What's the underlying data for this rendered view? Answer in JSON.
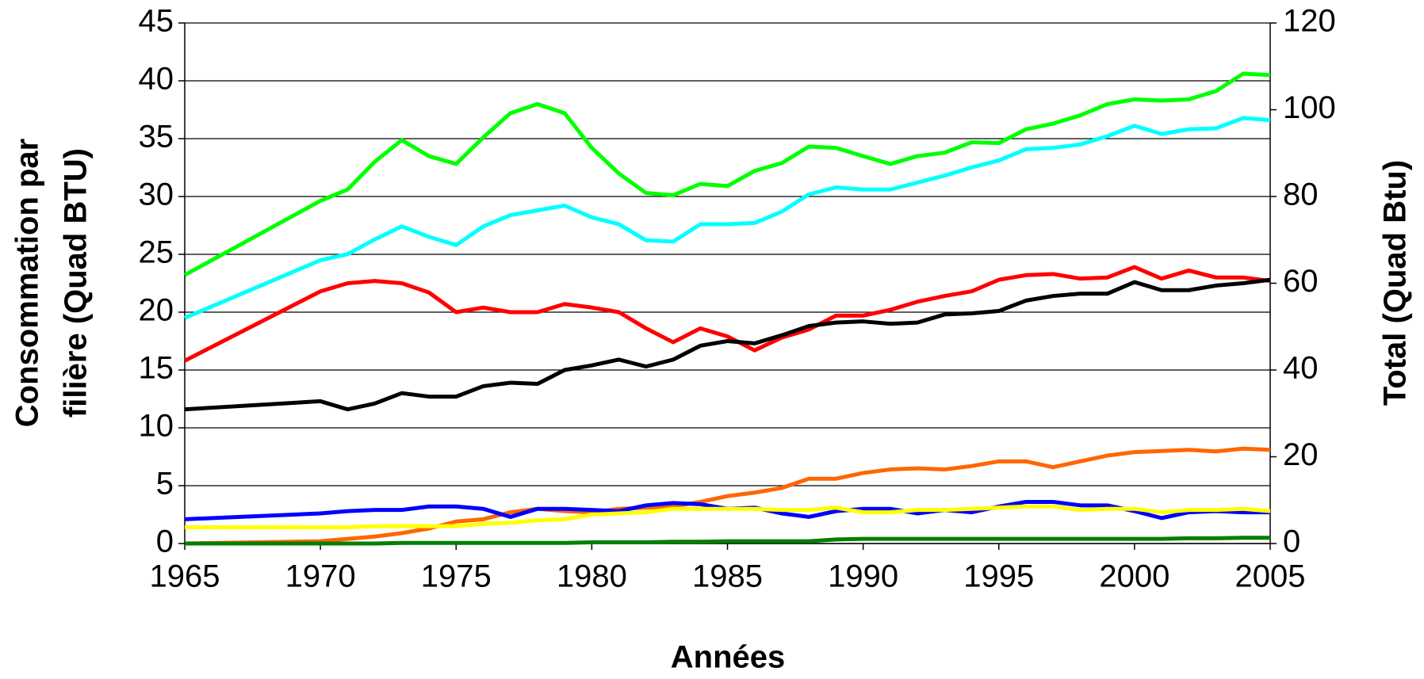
{
  "chart_data": {
    "type": "line",
    "xlabel": "Années",
    "ylabel": [
      "Consommation par",
      "filière (Quad BTU)"
    ],
    "y2label": "Total (Quad Btu)",
    "x": [
      1965,
      1970,
      1971,
      1972,
      1973,
      1974,
      1975,
      1976,
      1977,
      1978,
      1979,
      1980,
      1981,
      1982,
      1983,
      1984,
      1985,
      1986,
      1987,
      1988,
      1989,
      1990,
      1991,
      1992,
      1993,
      1994,
      1995,
      1996,
      1997,
      1998,
      1999,
      2000,
      2001,
      2002,
      2003,
      2004,
      2005
    ],
    "xlim": [
      1965,
      2005
    ],
    "xticks": [
      1965,
      1970,
      1975,
      1980,
      1985,
      1990,
      1995,
      2000,
      2005
    ],
    "ylim": [
      0,
      45
    ],
    "yticks": [
      0,
      5,
      10,
      15,
      20,
      25,
      30,
      35,
      40,
      45
    ],
    "y2lim": [
      0,
      120
    ],
    "y2ticks": [
      0,
      20,
      40,
      60,
      80,
      100,
      120
    ],
    "grid": true,
    "series": [
      {
        "color": "#00ff00",
        "axis": "y2",
        "values": [
          61.9,
          79,
          81.6,
          88,
          93,
          89.3,
          87.5,
          93.6,
          99.2,
          101.3,
          99.2,
          91.2,
          85.3,
          80.8,
          80.3,
          82.9,
          82.4,
          85.9,
          87.7,
          91.5,
          91.2,
          89.3,
          87.5,
          89.3,
          90.1,
          92.5,
          92.3,
          95.5,
          96.8,
          98.7,
          101.3,
          102.4,
          102.1,
          102.4,
          104.3,
          108.3,
          108
        ]
      },
      {
        "color": "#00ffff",
        "axis": "y2",
        "values": [
          52,
          65.3,
          66.7,
          70.1,
          73.1,
          70.7,
          68.8,
          73.1,
          75.7,
          76.8,
          77.9,
          75.2,
          73.6,
          69.9,
          69.6,
          73.6,
          73.6,
          73.9,
          76.5,
          80.5,
          82.1,
          81.6,
          81.6,
          83.2,
          84.8,
          86.7,
          88.3,
          90.9,
          91.2,
          92,
          93.9,
          96.3,
          94.4,
          95.5,
          95.7,
          98.1,
          97.6
        ]
      },
      {
        "color": "#ff0000",
        "values": [
          15.8,
          21.8,
          22.5,
          22.7,
          22.5,
          21.7,
          20.0,
          20.4,
          20.0,
          20.0,
          20.7,
          20.4,
          20.0,
          18.6,
          17.4,
          18.6,
          17.9,
          16.7,
          17.8,
          18.5,
          19.7,
          19.7,
          20.2,
          20.9,
          21.4,
          21.8,
          22.8,
          23.2,
          23.3,
          22.9,
          23.0,
          23.9,
          22.9,
          23.6,
          23.0,
          23.0,
          22.7
        ]
      },
      {
        "color": "#000000",
        "values": [
          11.6,
          12.3,
          11.6,
          12.1,
          13.0,
          12.7,
          12.7,
          13.6,
          13.9,
          13.8,
          15.0,
          15.4,
          15.9,
          15.3,
          15.9,
          17.1,
          17.5,
          17.3,
          18.0,
          18.8,
          19.1,
          19.2,
          19.0,
          19.1,
          19.8,
          19.9,
          20.1,
          21.0,
          21.4,
          21.6,
          21.6,
          22.6,
          21.9,
          21.9,
          22.3,
          22.5,
          22.8
        ]
      },
      {
        "color": "#ff6600",
        "values": [
          0.0,
          0.2,
          0.4,
          0.6,
          0.9,
          1.3,
          1.9,
          2.1,
          2.7,
          3.0,
          2.8,
          2.7,
          3.0,
          3.1,
          3.2,
          3.6,
          4.1,
          4.4,
          4.8,
          5.6,
          5.6,
          6.1,
          6.4,
          6.5,
          6.4,
          6.7,
          7.1,
          7.1,
          6.6,
          7.1,
          7.6,
          7.9,
          8.0,
          8.1,
          7.96,
          8.2,
          8.1
        ]
      },
      {
        "color": "#0000ff",
        "values": [
          2.1,
          2.6,
          2.8,
          2.9,
          2.9,
          3.2,
          3.2,
          3.0,
          2.3,
          3.0,
          3.0,
          2.9,
          2.8,
          3.3,
          3.5,
          3.4,
          3.0,
          3.1,
          2.6,
          2.3,
          2.8,
          3.0,
          3.0,
          2.6,
          2.9,
          2.7,
          3.2,
          3.6,
          3.6,
          3.3,
          3.3,
          2.8,
          2.2,
          2.7,
          2.8,
          2.7,
          2.7
        ]
      },
      {
        "color": "#ffff00",
        "values": [
          1.4,
          1.4,
          1.4,
          1.5,
          1.5,
          1.5,
          1.5,
          1.7,
          1.8,
          2.0,
          2.1,
          2.5,
          2.6,
          2.7,
          3.0,
          3.0,
          3.0,
          3.0,
          2.9,
          2.9,
          3.1,
          2.7,
          2.7,
          2.9,
          2.9,
          3.0,
          3.1,
          3.2,
          3.2,
          2.9,
          3.0,
          3.0,
          2.7,
          2.9,
          2.9,
          3.0,
          2.8
        ]
      },
      {
        "color": "#008000",
        "values": [
          0,
          0,
          0,
          0,
          0.05,
          0.05,
          0.05,
          0.05,
          0.05,
          0.05,
          0.05,
          0.1,
          0.1,
          0.1,
          0.15,
          0.15,
          0.2,
          0.2,
          0.2,
          0.2,
          0.35,
          0.4,
          0.4,
          0.4,
          0.4,
          0.4,
          0.4,
          0.4,
          0.4,
          0.4,
          0.4,
          0.4,
          0.4,
          0.45,
          0.45,
          0.5,
          0.5
        ]
      }
    ]
  }
}
